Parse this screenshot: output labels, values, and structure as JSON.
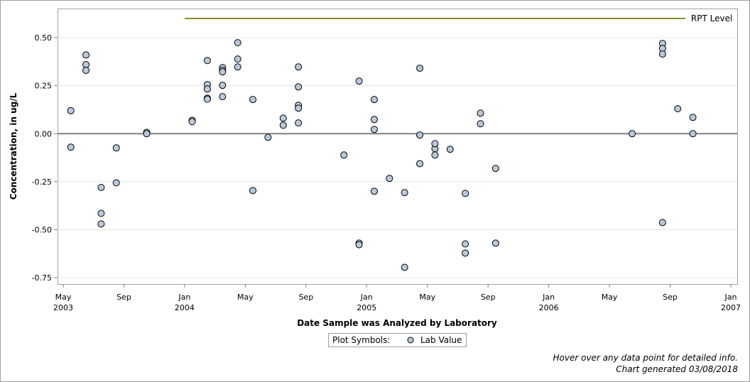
{
  "chart_data": {
    "type": "scatter",
    "x_label": "Date Sample was Analyzed by Laboratory",
    "y_label": "Concentration, in ug/L",
    "legend_title": "Plot Symbols:",
    "notes": [
      "Hover over any data point for detailed info.",
      "Chart generated 03/08/2018"
    ],
    "xlim": [
      "2003-05",
      "2007-01"
    ],
    "xticks": [
      {
        "value": "2003-05",
        "label": "May",
        "sublabel": "2003"
      },
      {
        "value": "2003-09",
        "label": "Sep"
      },
      {
        "value": "2004-01",
        "label": "Jan",
        "sublabel": "2004"
      },
      {
        "value": "2004-05",
        "label": "May"
      },
      {
        "value": "2004-09",
        "label": "Sep"
      },
      {
        "value": "2005-01",
        "label": "Jan",
        "sublabel": "2005"
      },
      {
        "value": "2005-05",
        "label": "May"
      },
      {
        "value": "2005-09",
        "label": "Sep"
      },
      {
        "value": "2006-01",
        "label": "Jan",
        "sublabel": "2006"
      },
      {
        "value": "2006-05",
        "label": "May"
      },
      {
        "value": "2006-09",
        "label": "Sep"
      },
      {
        "value": "2007-01",
        "label": "Jan",
        "sublabel": "2007"
      }
    ],
    "ylim": [
      -0.783,
      0.652
    ],
    "yticks": [
      {
        "value": 0.5,
        "label": "0.50"
      },
      0.25,
      {
        "value": 0,
        "label": "0.00"
      },
      -0.25,
      {
        "value": -0.5,
        "label": "-0.50"
      },
      -0.75
    ],
    "grid": true,
    "reference_line": 0,
    "series": [
      {
        "name": "Lab Value",
        "color": "#b9c9dc",
        "x": [
          "2003-05",
          "2003-05",
          "2003-06",
          "2003-06",
          "2003-06",
          "2003-07",
          "2003-07",
          "2003-07",
          "2003-08",
          "2003-08",
          "2003-10",
          "2003-10",
          "2004-01",
          "2004-01",
          "2004-02",
          "2004-02",
          "2004-02",
          "2004-02",
          "2004-02",
          "2004-03",
          "2004-03",
          "2004-03",
          "2004-03",
          "2004-03",
          "2004-04",
          "2004-04",
          "2004-04",
          "2004-05",
          "2004-05",
          "2004-06",
          "2004-07",
          "2004-07",
          "2004-08",
          "2004-08",
          "2004-08",
          "2004-08",
          "2004-08",
          "2004-11",
          "2004-12",
          "2004-12",
          "2004-12",
          "2005-01",
          "2005-01",
          "2005-01",
          "2005-01",
          "2005-02",
          "2005-03",
          "2005-03",
          "2005-04",
          "2005-04",
          "2005-04",
          "2005-05",
          "2005-05",
          "2005-05",
          "2005-06",
          "2005-07",
          "2005-07",
          "2005-07",
          "2005-08",
          "2005-08",
          "2005-09",
          "2005-09",
          "2006-06",
          "2006-08",
          "2006-08",
          "2006-08",
          "2006-08",
          "2006-09",
          "2006-10",
          "2006-10"
        ],
        "values": [
          0.12,
          -0.07,
          0.41,
          0.36,
          0.33,
          -0.28,
          -0.415,
          -0.47,
          -0.074,
          -0.256,
          0.007,
          0.0,
          0.07,
          0.063,
          0.256,
          0.233,
          0.185,
          0.18,
          0.381,
          0.344,
          0.193,
          0.33,
          0.322,
          0.252,
          0.474,
          0.389,
          0.348,
          0.178,
          -0.296,
          -0.019,
          0.081,
          0.044,
          0.348,
          0.244,
          0.148,
          0.133,
          0.056,
          -0.111,
          -0.57,
          -0.578,
          0.274,
          0.178,
          0.074,
          0.022,
          -0.3,
          -0.233,
          -0.307,
          -0.696,
          -0.007,
          -0.156,
          0.341,
          -0.078,
          -0.052,
          -0.111,
          -0.081,
          -0.311,
          -0.574,
          -0.622,
          0.107,
          0.052,
          -0.57,
          -0.181,
          0.0,
          0.47,
          0.444,
          0.415,
          -0.463,
          0.13,
          0.085,
          0.0
        ]
      },
      {
        "name": "RPT Level",
        "color": "#8c8c2c",
        "line": true,
        "x": [
          "2004-01",
          "2006-10"
        ],
        "values": [
          0.6,
          0.6
        ]
      }
    ]
  }
}
